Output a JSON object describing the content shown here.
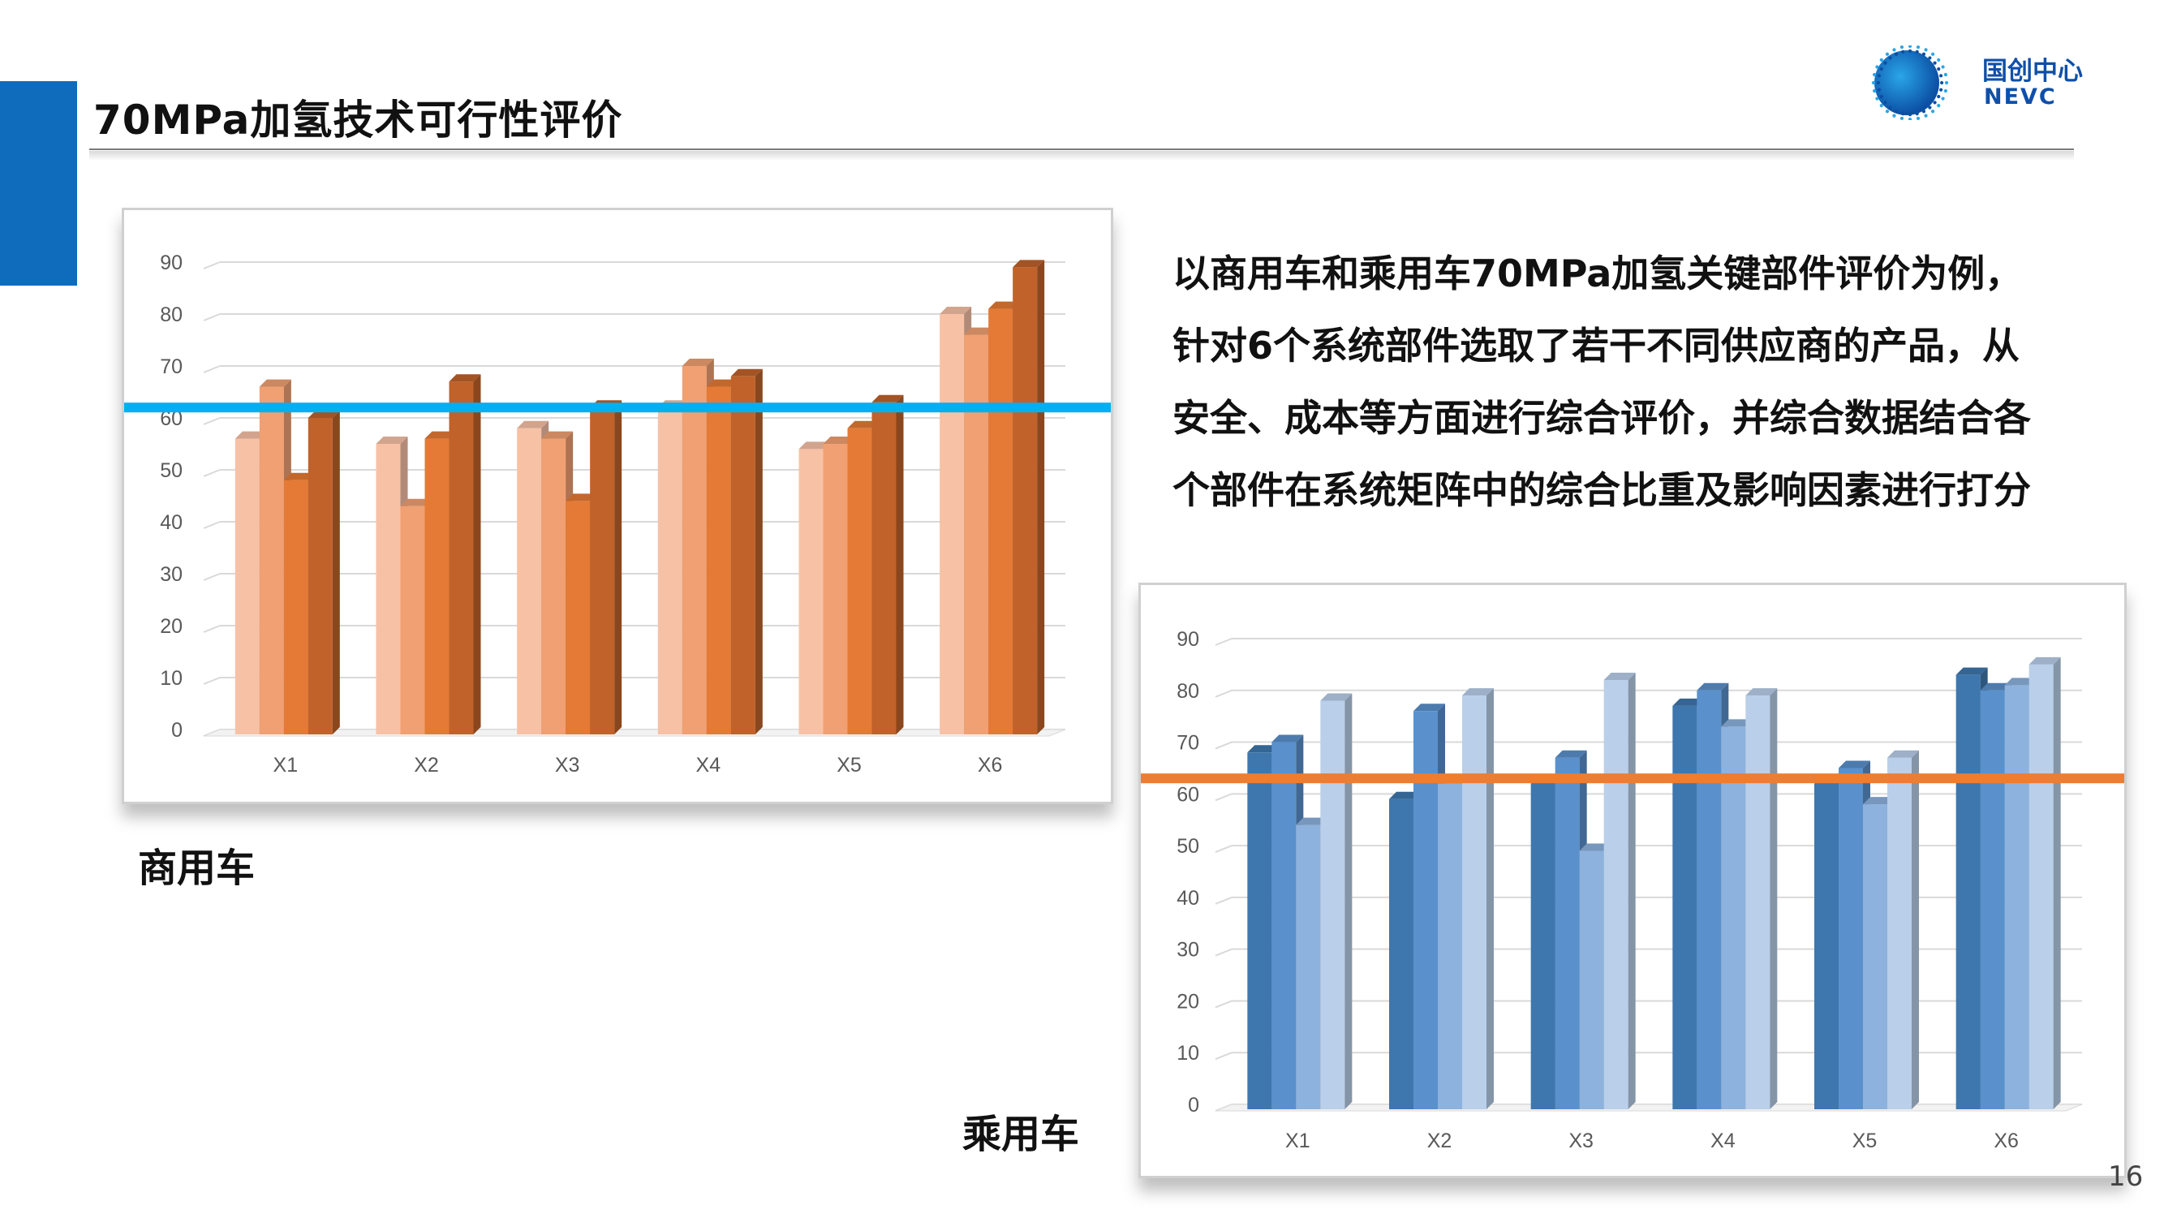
{
  "slide": {
    "title": "70MPa加氢技术可行性评价",
    "logo": {
      "cn": "国创中心",
      "en": "NEVC"
    },
    "description": [
      "以商用车和乘用车70MPa加氢关键部件评价为例，",
      "针对6个系统部件选取了若干不同供应商的产品，从",
      "安全、成本等方面进行综合评价，并综合数据结合各",
      "个部件在系统矩阵中的综合比重及影响因素进行打分"
    ],
    "commercial_label": "商用车",
    "passenger_label": "乘用车",
    "page_number": "16",
    "colors": {
      "accent_bar": "#0f6cbd",
      "threshold_commercial": "#00b0f0",
      "threshold_passenger": "#ed7d31"
    }
  },
  "chart_data": [
    {
      "type": "bar",
      "categories": [
        "X1",
        "X2",
        "X3",
        "X4",
        "X5",
        "X6"
      ],
      "series": [
        {
          "values": [
            56,
            55,
            58,
            62,
            54,
            80
          ],
          "color": "#f7c1a6"
        },
        {
          "values": [
            66,
            43,
            56,
            70,
            55,
            76
          ],
          "color": "#f0a072"
        },
        {
          "values": [
            48,
            56,
            44,
            66,
            58,
            81
          ],
          "color": "#e47a35"
        },
        {
          "values": [
            60,
            67,
            62,
            68,
            63,
            89
          ],
          "color": "#c0622a"
        }
      ],
      "threshold": 62,
      "ylim": [
        0,
        90
      ],
      "yticks": [
        0,
        10,
        20,
        30,
        40,
        50,
        60,
        70,
        80,
        90
      ],
      "grid": true
    },
    {
      "type": "bar",
      "categories": [
        "X1",
        "X2",
        "X3",
        "X4",
        "X5",
        "X6"
      ],
      "series": [
        {
          "values": [
            68,
            59,
            62,
            77,
            62,
            83
          ],
          "color": "#3e77ad"
        },
        {
          "values": [
            70,
            76,
            67,
            80,
            65,
            80
          ],
          "color": "#5a91cc"
        },
        {
          "values": [
            54,
            62,
            49,
            73,
            58,
            81
          ],
          "color": "#8db2dd"
        },
        {
          "values": [
            78,
            79,
            82,
            79,
            67,
            85
          ],
          "color": "#b9cfea"
        }
      ],
      "threshold": 63,
      "ylim": [
        0,
        90
      ],
      "yticks": [
        0,
        10,
        20,
        30,
        40,
        50,
        60,
        70,
        80,
        90
      ],
      "grid": true
    }
  ]
}
